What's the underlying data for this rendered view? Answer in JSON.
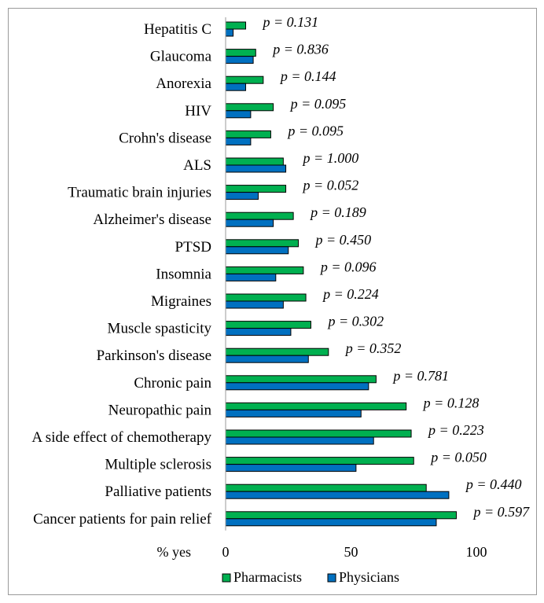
{
  "chart_data": {
    "type": "bar",
    "orientation": "horizontal",
    "xlabel": "% yes",
    "xlim": [
      0,
      100
    ],
    "xticks": [
      "0",
      "50",
      "100"
    ],
    "grid": false,
    "legend_position": "bottom",
    "categories": [
      "Hepatitis C",
      "Glaucoma",
      "Anorexia",
      "HIV",
      "Crohn's disease",
      "ALS",
      "Traumatic brain injuries",
      "Alzheimer's disease",
      "PTSD",
      "Insomnia",
      "Migraines",
      "Muscle spasticity",
      "Parkinson's disease",
      "Chronic pain",
      "Neuropathic pain",
      "A side effect of chemotherapy",
      "Multiple sclerosis",
      "Palliative patients",
      "Cancer patients for pain relief"
    ],
    "series": [
      {
        "name": "Pharmacists",
        "color": "#00b050",
        "values": [
          8,
          12,
          15,
          19,
          18,
          23,
          24,
          27,
          29,
          31,
          32,
          34,
          41,
          60,
          72,
          74,
          75,
          80,
          92
        ]
      },
      {
        "name": "Physicians",
        "color": "#0070c0",
        "values": [
          3,
          11,
          8,
          10,
          10,
          24,
          13,
          19,
          25,
          20,
          23,
          26,
          33,
          57,
          54,
          59,
          52,
          89,
          84
        ]
      }
    ],
    "annotations": [
      "p = 0.131",
      "p = 0.836",
      "p = 0.144",
      "p = 0.095",
      "p = 0.095",
      "p = 1.000",
      "p = 0.052",
      "p = 0.189",
      "p = 0.450",
      "p = 0.096",
      "p = 0.224",
      "p = 0.302",
      "p = 0.352",
      "p = 0.781",
      "p = 0.128",
      "p = 0.223",
      "p = 0.050",
      "p = 0.440",
      "p = 0.597"
    ]
  }
}
